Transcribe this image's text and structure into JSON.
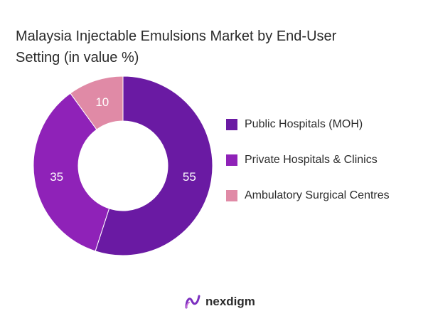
{
  "chart_data": {
    "type": "pie",
    "donut": true,
    "title_lines": [
      "Malaysia Injectable Emulsions Market by End-User",
      "Setting (in value %)"
    ],
    "unit": "%",
    "slices": [
      {
        "label": "Public Hospitals (MOH)",
        "value": 55,
        "color": "#6a1aa3"
      },
      {
        "label": "Private Hospitals & Clinics",
        "value": 35,
        "color": "#8f22b8"
      },
      {
        "label": "Ambulatory Surgical Centres",
        "value": 10,
        "color": "#e08aa6"
      }
    ],
    "legend_position": "right"
  },
  "brand": {
    "name": "nexdigm",
    "accent": "#7b2fbf"
  }
}
